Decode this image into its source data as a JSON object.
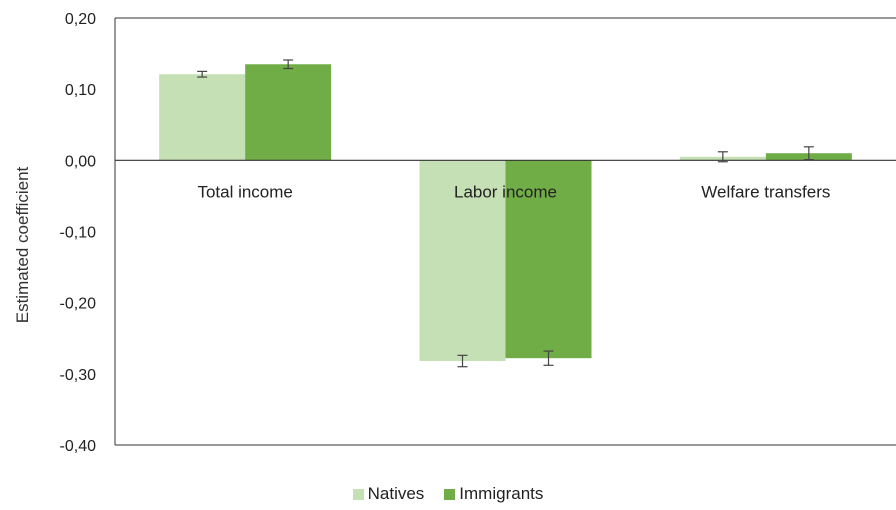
{
  "chart_data": {
    "type": "bar",
    "ylabel": "Estimated coefficient",
    "ylim": [
      -0.4,
      0.2
    ],
    "yticks": [
      "0,20",
      "0,10",
      "0,00",
      "-0,10",
      "-0,20",
      "-0,30",
      "-0,40"
    ],
    "categories": [
      "Total income",
      "Labor income",
      "Welfare transfers"
    ],
    "series": [
      {
        "name": "Natives",
        "color": "#c5e0b4",
        "values": [
          0.121,
          -0.282,
          0.005
        ],
        "error": [
          0.004,
          0.008,
          0.007
        ]
      },
      {
        "name": "Immigrants",
        "color": "#70ad47",
        "values": [
          0.135,
          -0.278,
          0.01
        ],
        "error": [
          0.006,
          0.01,
          0.009
        ]
      }
    ],
    "grid": false,
    "legend": "bottom-center"
  }
}
